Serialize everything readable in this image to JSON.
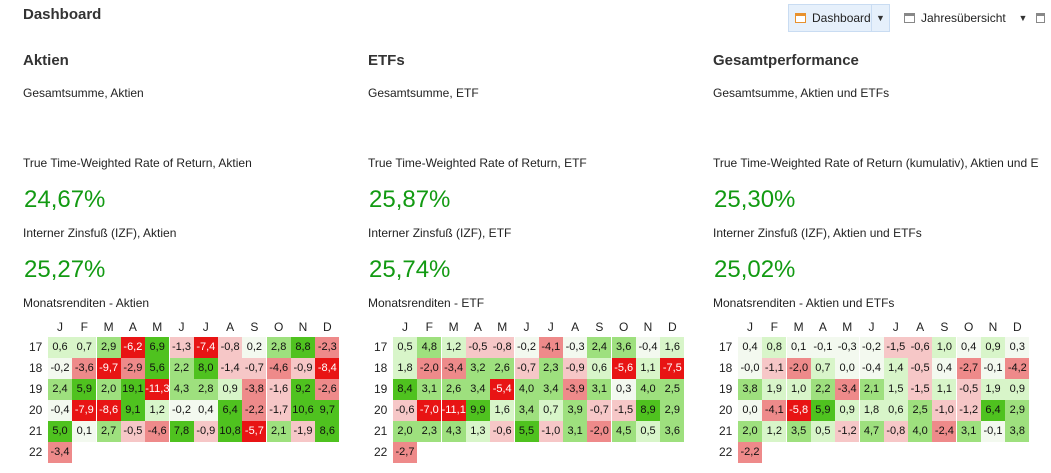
{
  "page_title": "Dashboard",
  "toolbar": {
    "dashboard_label": "Dashboard",
    "year_overview_label": "Jahresübersicht"
  },
  "columns": [
    {
      "title": "Aktien",
      "sum_label": "Gesamtsumme, Aktien",
      "ttwror_label": "True Time-Weighted Rate of Return, Aktien",
      "ttwror_value": "24,67%",
      "izf_label": "Interner Zinsfuß (IZF), Aktien",
      "izf_value": "25,27%",
      "monthly_label": "Monatsrenditen - Aktien"
    },
    {
      "title": "ETFs",
      "sum_label": "Gesamtsumme, ETF",
      "ttwror_label": "True Time-Weighted Rate of Return, ETF",
      "ttwror_value": "25,87%",
      "izf_label": "Interner Zinsfuß (IZF), ETF",
      "izf_value": "25,74%",
      "monthly_label": "Monatsrenditen - ETF"
    },
    {
      "title": "Gesamtperformance",
      "sum_label": "Gesamtsumme, Aktien und ETFs",
      "ttwror_label": "True Time-Weighted Rate of Return (kumulativ), Aktien und ETFs",
      "ttwror_value": "25,30%",
      "izf_label": "Interner Zinsfuß (IZF), Aktien und ETFs",
      "izf_value": "25,02%",
      "monthly_label": "Monatsrenditen - Aktien und ETFs"
    }
  ],
  "heatmap": {
    "months": [
      "J",
      "F",
      "M",
      "A",
      "M",
      "J",
      "J",
      "A",
      "S",
      "O",
      "N",
      "D"
    ],
    "years": [
      "17",
      "18",
      "19",
      "20",
      "21",
      "22"
    ],
    "colors": {
      "strong_pos": "#4fc21f",
      "pos": "#9ee07e",
      "light_pos": "#d8f5c9",
      "neutral": "#f3f9ef",
      "light_neg": "#f6c7c7",
      "neg": "#ee8a8a",
      "strong_neg": "#e81414"
    },
    "tables": [
      [
        [
          "0,6",
          "0,7",
          "2,9",
          "-6,2",
          "6,9",
          "-1,3",
          "-7,4",
          "-0,8",
          "0,2",
          "2,8",
          "8,8",
          "-2,3"
        ],
        [
          "-0,2",
          "-3,6",
          "-9,7",
          "-2,9",
          "5,6",
          "2,2",
          "8,0",
          "-1,4",
          "-0,7",
          "-4,6",
          "-0,9",
          "-8,4"
        ],
        [
          "2,4",
          "5,9",
          "2,0",
          "19,1",
          "-11,3",
          "4,3",
          "2,8",
          "0,9",
          "-3,8",
          "-1,6",
          "9,2",
          "-2,6"
        ],
        [
          "-0,4",
          "-7,9",
          "-8,6",
          "9,1",
          "1,2",
          "-0,2",
          "0,4",
          "6,4",
          "-2,2",
          "-1,7",
          "10,6",
          "9,7"
        ],
        [
          "5,0",
          "0,1",
          "2,7",
          "-0,5",
          "-4,6",
          "7,8",
          "-0,9",
          "10,8",
          "-5,7",
          "2,1",
          "-1,9",
          "8,6"
        ],
        [
          "-3,4"
        ]
      ],
      [
        [
          "0,5",
          "4,8",
          "1,2",
          "-0,5",
          "-0,8",
          "-0,2",
          "-4,1",
          "-0,3",
          "2,4",
          "3,6",
          "-0,4",
          "1,6"
        ],
        [
          "1,8",
          "-2,0",
          "-3,4",
          "3,2",
          "2,6",
          "-0,7",
          "2,3",
          "-0,9",
          "0,6",
          "-5,6",
          "1,1",
          "-7,5"
        ],
        [
          "8,4",
          "3,1",
          "2,6",
          "3,4",
          "-5,4",
          "4,0",
          "3,4",
          "-3,9",
          "3,1",
          "0,3",
          "4,0",
          "2,5"
        ],
        [
          "-0,6",
          "-7,0",
          "-11,1",
          "9,9",
          "1,6",
          "3,4",
          "0,7",
          "3,9",
          "-0,7",
          "-1,5",
          "8,9",
          "2,9"
        ],
        [
          "2,0",
          "2,3",
          "4,3",
          "1,3",
          "-0,6",
          "5,5",
          "-1,0",
          "3,1",
          "-2,0",
          "4,5",
          "0,5",
          "3,6"
        ],
        [
          "-2,7"
        ]
      ],
      [
        [
          "0,4",
          "0,8",
          "0,1",
          "-0,1",
          "-0,3",
          "-0,2",
          "-1,5",
          "-0,6",
          "1,0",
          "0,4",
          "0,9",
          "0,3"
        ],
        [
          "-0,0",
          "-1,1",
          "-2,0",
          "0,7",
          "0,0",
          "-0,4",
          "1,4",
          "-0,5",
          "0,4",
          "-2,7",
          "-0,1",
          "-4,2"
        ],
        [
          "3,8",
          "1,9",
          "1,0",
          "2,2",
          "-3,4",
          "2,1",
          "1,5",
          "-1,5",
          "1,1",
          "-0,5",
          "1,9",
          "0,9"
        ],
        [
          "0,0",
          "-4,1",
          "-5,8",
          "5,9",
          "0,9",
          "1,8",
          "0,6",
          "2,5",
          "-1,0",
          "-1,2",
          "6,4",
          "2,9"
        ],
        [
          "2,0",
          "1,2",
          "3,5",
          "0,5",
          "-1,2",
          "4,7",
          "-0,8",
          "4,0",
          "-2,4",
          "3,1",
          "-0,1",
          "3,8"
        ],
        [
          "-2,2"
        ]
      ]
    ]
  }
}
